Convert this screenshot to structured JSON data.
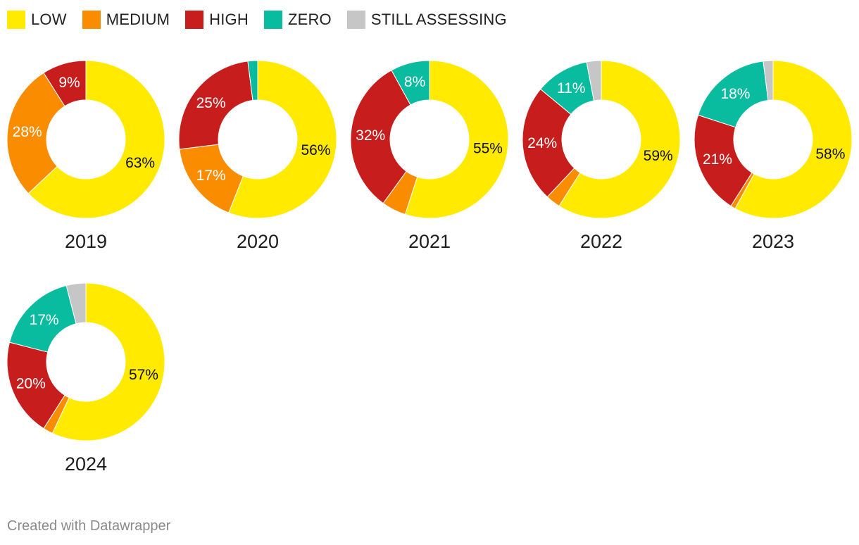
{
  "legend": [
    {
      "key": "low",
      "label": "LOW",
      "color": "#ffea00"
    },
    {
      "key": "medium",
      "label": "MEDIUM",
      "color": "#fa8c00"
    },
    {
      "key": "high",
      "label": "HIGH",
      "color": "#c71e1d"
    },
    {
      "key": "zero",
      "label": "ZERO",
      "color": "#09bb9f"
    },
    {
      "key": "assessing",
      "label": "STILL ASSESSING",
      "color": "#c6c6c6"
    }
  ],
  "chart_data": {
    "type": "pie",
    "variant": "donut",
    "categories": [
      "LOW",
      "MEDIUM",
      "HIGH",
      "ZERO",
      "STILL ASSESSING"
    ],
    "series": [
      {
        "name": "2019",
        "values": [
          63,
          28,
          9,
          0,
          0
        ],
        "labels": [
          "63%",
          "28%",
          "9%",
          "",
          ""
        ]
      },
      {
        "name": "2020",
        "values": [
          56,
          17,
          25,
          2,
          0
        ],
        "labels": [
          "56%",
          "17%",
          "25%",
          "",
          ""
        ]
      },
      {
        "name": "2021",
        "values": [
          55,
          5,
          32,
          8,
          0
        ],
        "labels": [
          "55%",
          "",
          "32%",
          "8%",
          ""
        ]
      },
      {
        "name": "2022",
        "values": [
          59,
          3,
          24,
          11,
          3
        ],
        "labels": [
          "59%",
          "",
          "24%",
          "11%",
          ""
        ]
      },
      {
        "name": "2023",
        "values": [
          58,
          1,
          21,
          18,
          2
        ],
        "labels": [
          "58%",
          "",
          "21%",
          "18%",
          ""
        ]
      },
      {
        "name": "2024",
        "values": [
          57,
          2,
          20,
          17,
          4
        ],
        "labels": [
          "57%",
          "",
          "20%",
          "17%",
          ""
        ]
      }
    ]
  },
  "footer": "Created with Datawrapper"
}
